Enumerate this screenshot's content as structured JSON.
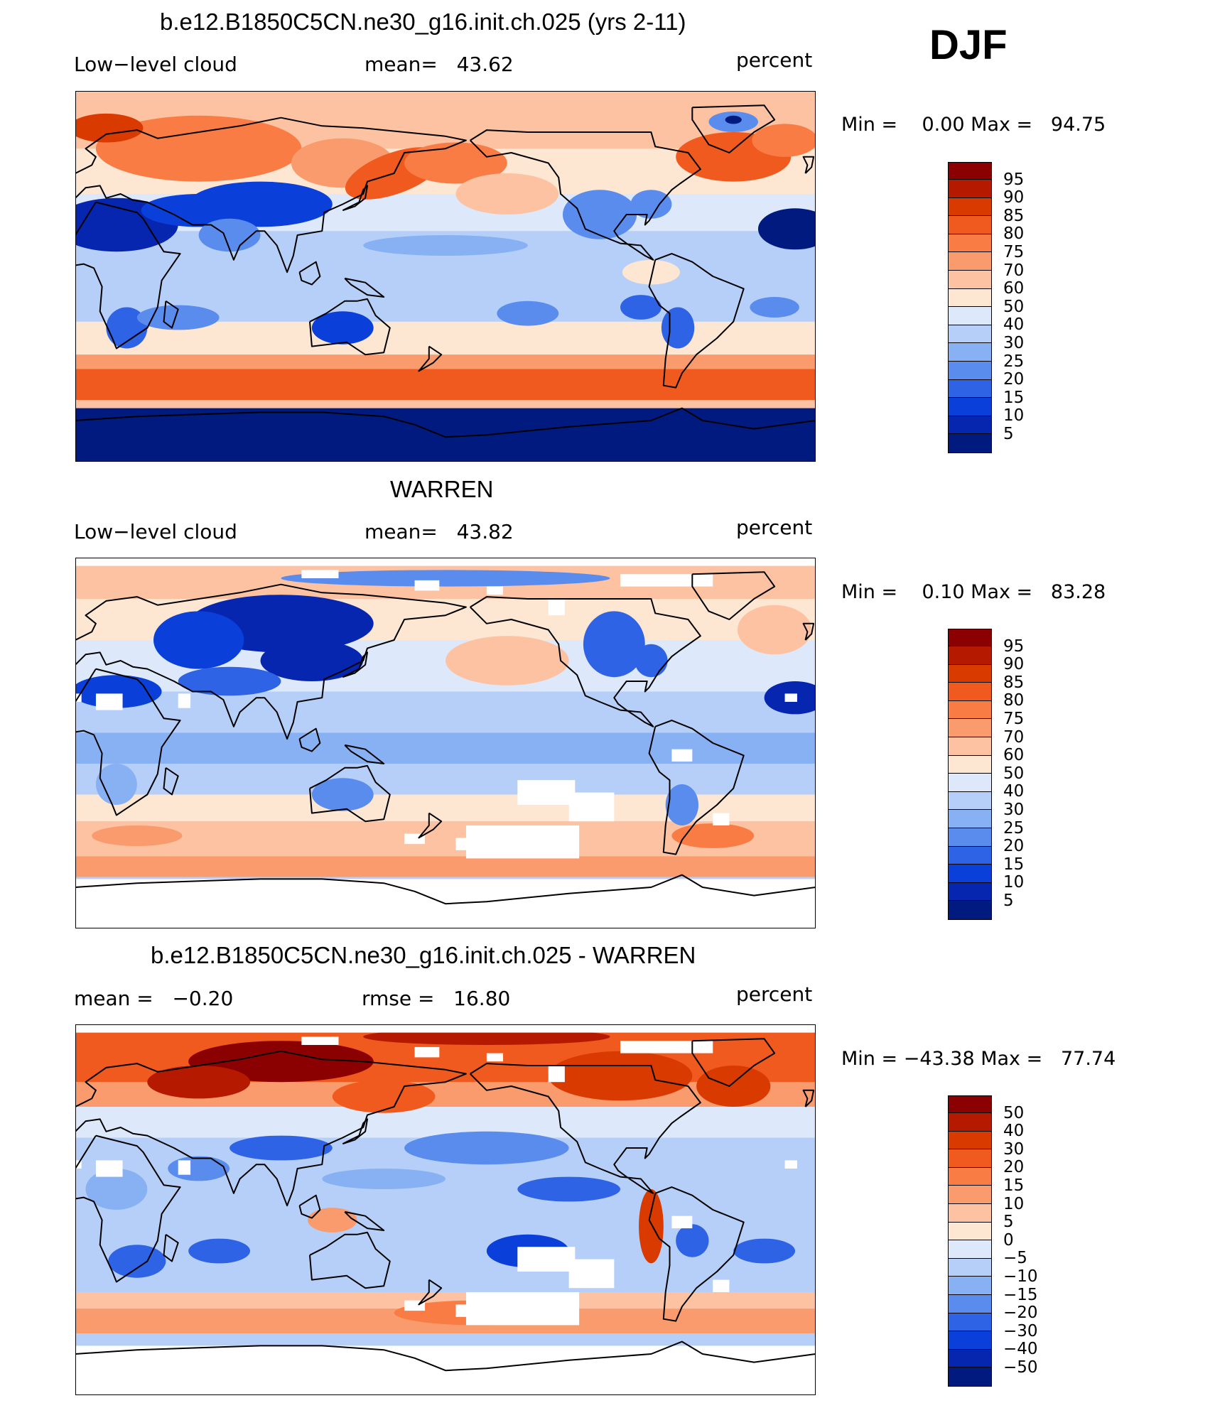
{
  "season": "DJF",
  "chart_data": [
    {
      "type": "heatmap",
      "id": "model",
      "title": "b.e12.B1850C5CN.ne30_g16.init.ch.025 (yrs 2-11)",
      "variable": "Low−level cloud",
      "stat_text": "mean=   43.62",
      "units": "percent",
      "minmax_text": "Min =    0.00 Max =   94.75",
      "min": 0.0,
      "max": 94.75,
      "mean": 43.62,
      "x_range": [
        0,
        360
      ],
      "y_range": [
        -90,
        90
      ],
      "colorbar_levels": [
        "95",
        "90",
        "85",
        "80",
        "75",
        "70",
        "60",
        "50",
        "40",
        "30",
        "25",
        "20",
        "15",
        "10",
        "5"
      ],
      "colorbar_colors": [
        "#8b0000",
        "#b51a00",
        "#d93a00",
        "#f05a1e",
        "#fa7c45",
        "#f99b6d",
        "#fcc2a2",
        "#fde6d2",
        "#dde9fb",
        "#b5cff8",
        "#88b1f3",
        "#5a8cee",
        "#2e63e6",
        "#0a3fd9",
        "#0626b0",
        "#001a80"
      ]
    },
    {
      "type": "heatmap",
      "id": "obs",
      "title": "WARREN",
      "variable": "Low−level cloud",
      "stat_text": "mean=   43.82",
      "units": "percent",
      "minmax_text": "Min =    0.10 Max =   83.28",
      "min": 0.1,
      "max": 83.28,
      "mean": 43.82,
      "x_range": [
        0,
        360
      ],
      "y_range": [
        -90,
        90
      ],
      "colorbar_levels": [
        "95",
        "90",
        "85",
        "80",
        "75",
        "70",
        "60",
        "50",
        "40",
        "30",
        "25",
        "20",
        "15",
        "10",
        "5"
      ],
      "colorbar_colors": [
        "#8b0000",
        "#b51a00",
        "#d93a00",
        "#f05a1e",
        "#fa7c45",
        "#f99b6d",
        "#fcc2a2",
        "#fde6d2",
        "#dde9fb",
        "#b5cff8",
        "#88b1f3",
        "#5a8cee",
        "#2e63e6",
        "#0a3fd9",
        "#0626b0",
        "#001a80"
      ]
    },
    {
      "type": "heatmap",
      "id": "diff",
      "title": "b.e12.B1850C5CN.ne30_g16.init.ch.025 - WARREN",
      "stat_left_text": "mean =   −0.20",
      "stat_text": "rmse =   16.80",
      "units": "percent",
      "minmax_text": "Min = −43.38 Max =   77.74",
      "min": -43.38,
      "max": 77.74,
      "mean": -0.2,
      "rmse": 16.8,
      "x_range": [
        0,
        360
      ],
      "y_range": [
        -90,
        90
      ],
      "colorbar_levels": [
        "50",
        "40",
        "30",
        "20",
        "15",
        "10",
        "5",
        "0",
        "−5",
        "−10",
        "−15",
        "−20",
        "−30",
        "−40",
        "−50"
      ],
      "colorbar_colors": [
        "#8b0000",
        "#b51a00",
        "#d93a00",
        "#f05a1e",
        "#fa7c45",
        "#f99b6d",
        "#fcc2a2",
        "#fde6d2",
        "#dde9fb",
        "#b5cff8",
        "#88b1f3",
        "#5a8cee",
        "#2e63e6",
        "#0a3fd9",
        "#0626b0",
        "#001a80"
      ]
    }
  ]
}
